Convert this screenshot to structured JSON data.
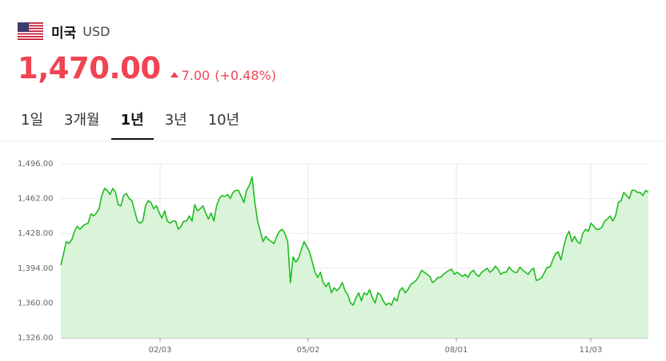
{
  "header": {
    "country": "미국",
    "currency": "USD",
    "flag_icon": "us-flag-icon"
  },
  "quote": {
    "price": "1,470.00",
    "change": "7.00",
    "change_pct": "(+0.48%)",
    "direction": "up",
    "color": "#f04452"
  },
  "tabs": [
    {
      "label": "1일",
      "active": false
    },
    {
      "label": "3개월",
      "active": false
    },
    {
      "label": "1년",
      "active": true
    },
    {
      "label": "3년",
      "active": false
    },
    {
      "label": "10년",
      "active": false
    }
  ],
  "chart_data": {
    "type": "area",
    "line_color": "#1fbd1f",
    "fill_color": "#d9f4d9",
    "ylim": [
      1326,
      1496
    ],
    "y_ticks": [
      "1,496.00",
      "1,462.00",
      "1,428.00",
      "1,394.00",
      "1,360.00",
      "1,326.00"
    ],
    "x_ticks": [
      "02/03",
      "05/02",
      "08/01",
      "11/03"
    ],
    "grid": "vertical-and-horizontal",
    "values": [
      1397,
      1408,
      1420,
      1418,
      1422,
      1430,
      1435,
      1432,
      1435,
      1437,
      1438,
      1447,
      1445,
      1448,
      1452,
      1465,
      1472,
      1470,
      1466,
      1472,
      1468,
      1456,
      1455,
      1465,
      1467,
      1462,
      1460,
      1450,
      1440,
      1438,
      1440,
      1455,
      1460,
      1458,
      1452,
      1455,
      1448,
      1443,
      1450,
      1440,
      1438,
      1440,
      1440,
      1432,
      1435,
      1440,
      1440,
      1445,
      1440,
      1456,
      1450,
      1452,
      1455,
      1448,
      1442,
      1448,
      1440,
      1455,
      1462,
      1465,
      1464,
      1466,
      1462,
      1468,
      1470,
      1470,
      1464,
      1458,
      1470,
      1475,
      1483,
      1458,
      1440,
      1430,
      1420,
      1425,
      1422,
      1420,
      1418,
      1425,
      1430,
      1432,
      1428,
      1420,
      1380,
      1405,
      1400,
      1404,
      1412,
      1420,
      1415,
      1410,
      1400,
      1390,
      1385,
      1390,
      1380,
      1376,
      1380,
      1370,
      1375,
      1372,
      1375,
      1380,
      1372,
      1368,
      1360,
      1358,
      1365,
      1370,
      1362,
      1370,
      1368,
      1373,
      1365,
      1360,
      1370,
      1368,
      1362,
      1358,
      1360,
      1358,
      1365,
      1362,
      1372,
      1375,
      1370,
      1373,
      1378,
      1380,
      1382,
      1386,
      1392,
      1390,
      1388,
      1386,
      1380,
      1382,
      1385,
      1385,
      1388,
      1390,
      1392,
      1393,
      1388,
      1390,
      1388,
      1386,
      1388,
      1385,
      1390,
      1392,
      1388,
      1386,
      1390,
      1392,
      1394,
      1390,
      1392,
      1396,
      1393,
      1388,
      1390,
      1390,
      1395,
      1392,
      1390,
      1390,
      1395,
      1392,
      1390,
      1388,
      1392,
      1394,
      1382,
      1383,
      1385,
      1390,
      1395,
      1395,
      1402,
      1408,
      1410,
      1402,
      1415,
      1425,
      1430,
      1420,
      1425,
      1420,
      1418,
      1428,
      1432,
      1430,
      1438,
      1435,
      1432,
      1432,
      1434,
      1440,
      1442,
      1445,
      1440,
      1445,
      1458,
      1460,
      1468,
      1465,
      1462,
      1470,
      1470,
      1468,
      1468,
      1465,
      1470,
      1468
    ]
  }
}
